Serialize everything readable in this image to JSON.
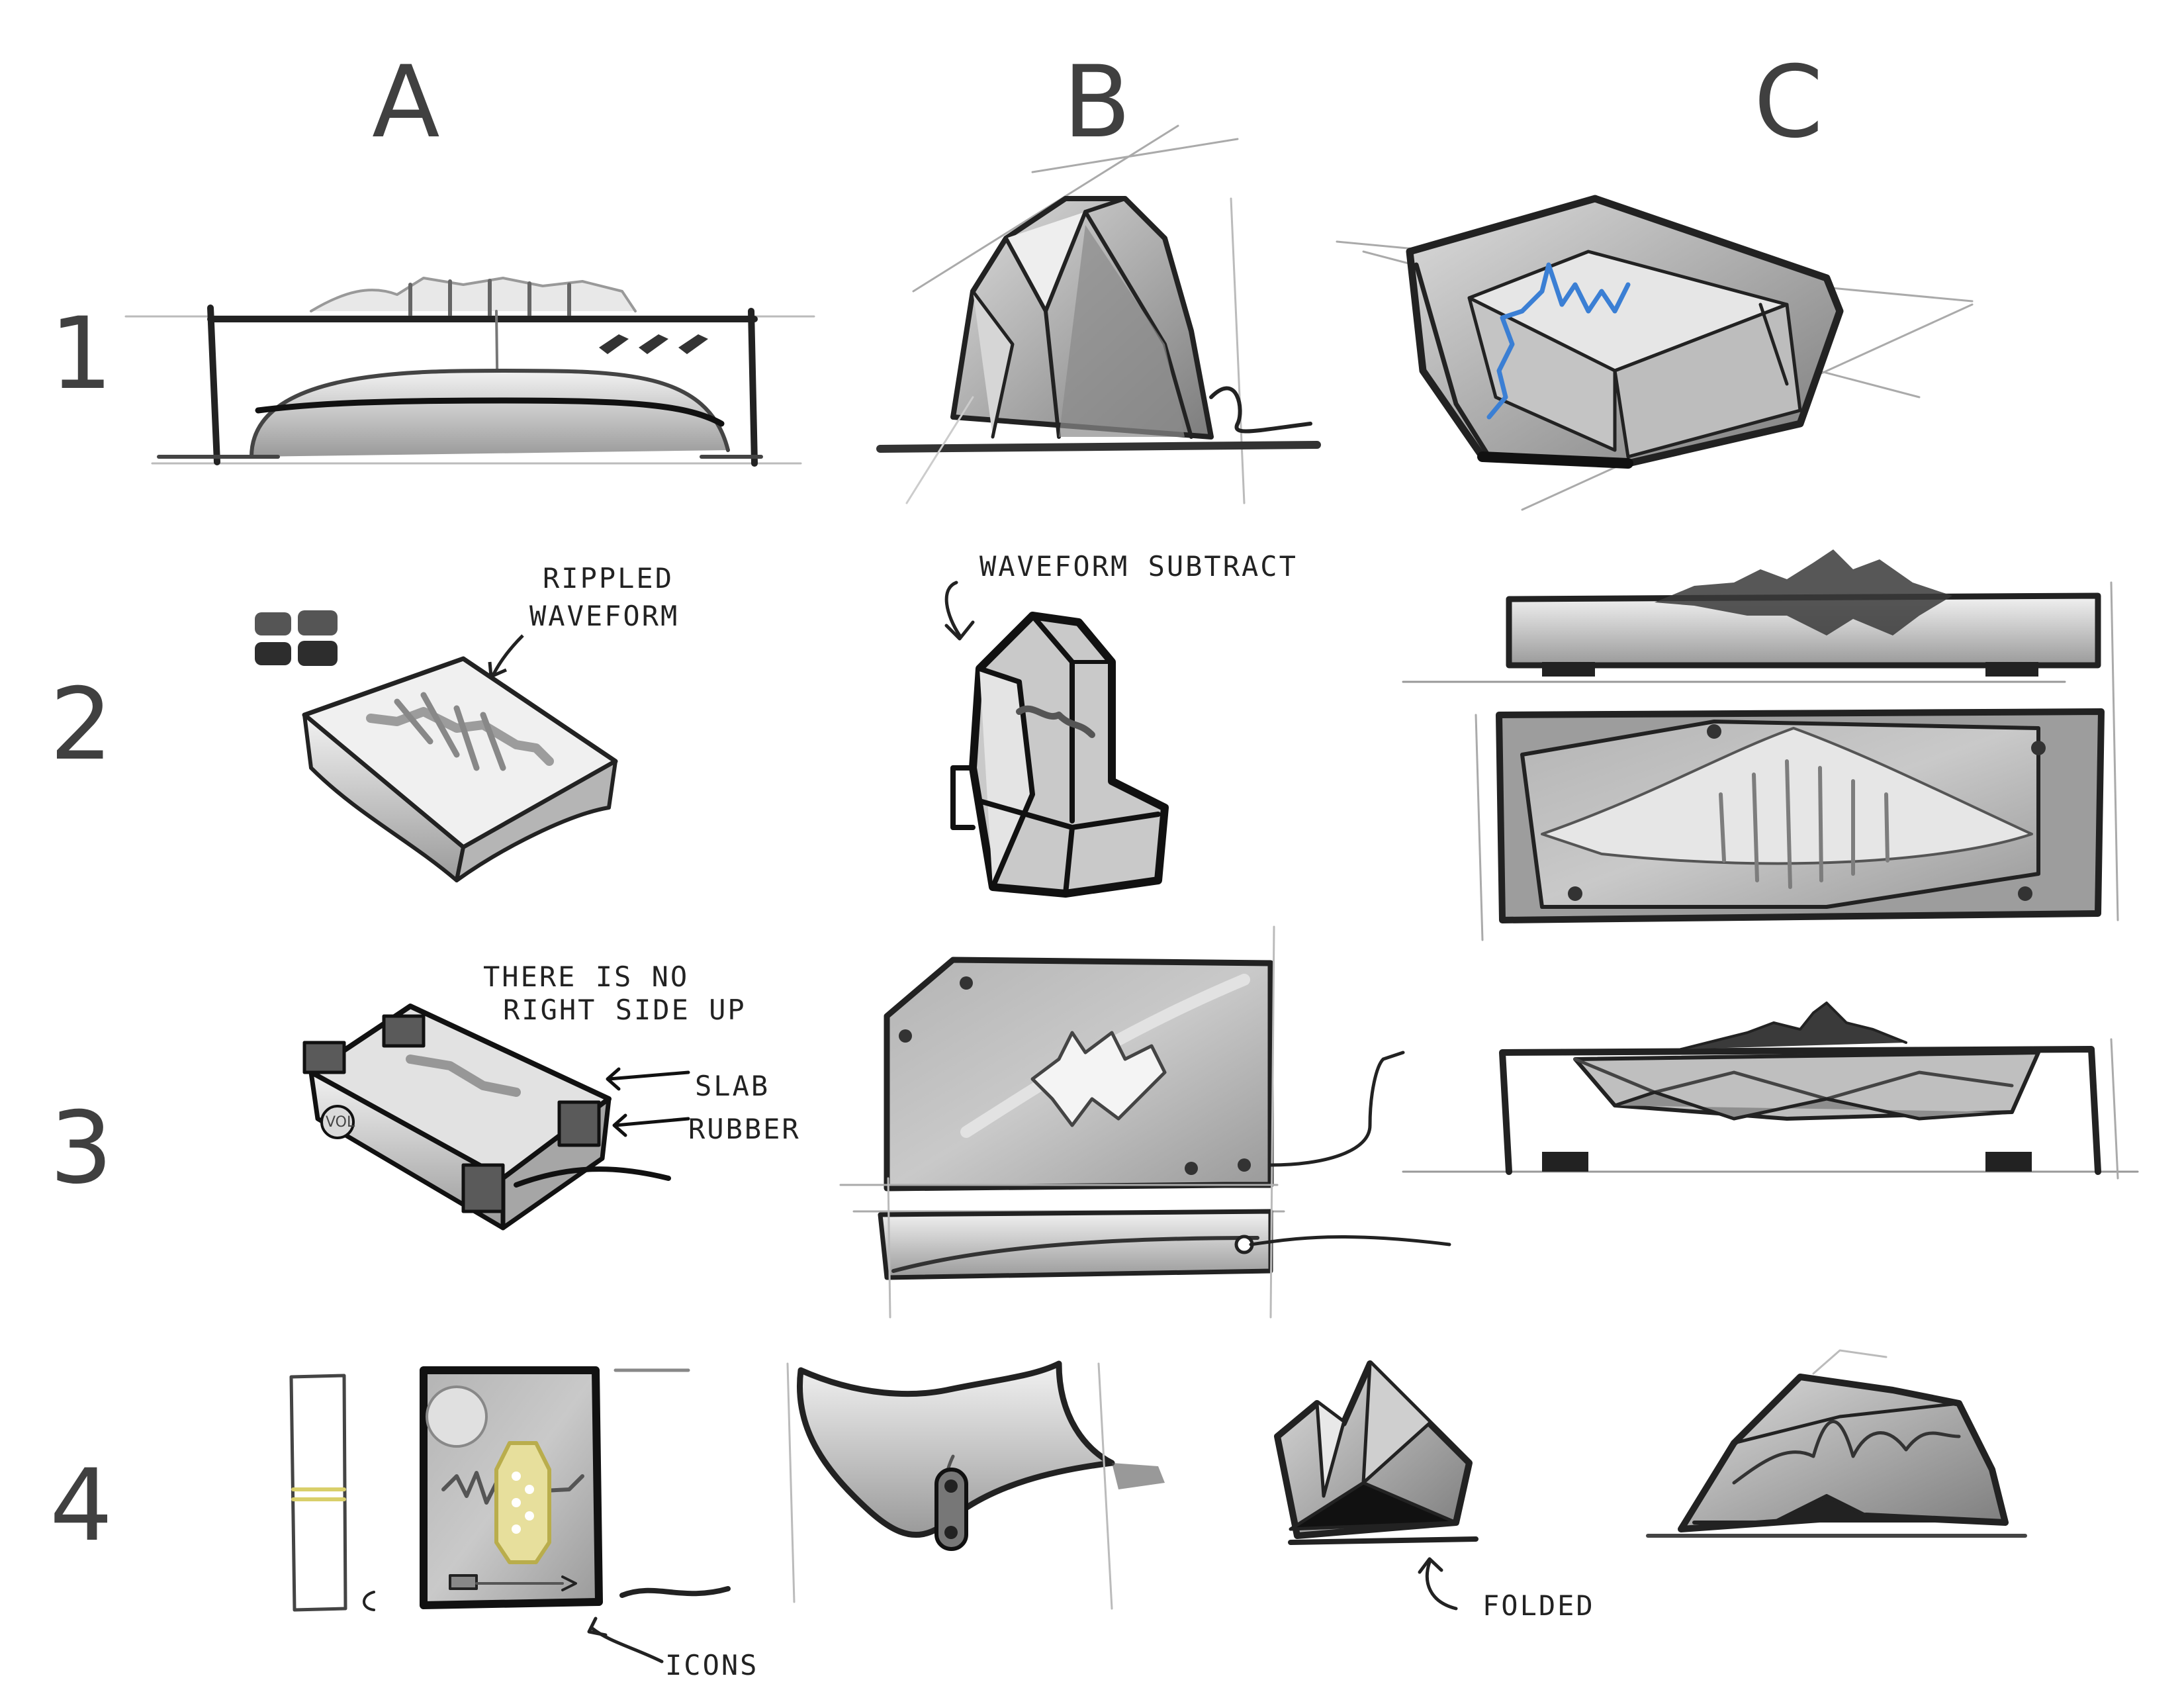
{
  "columns": [
    "A",
    "B",
    "C"
  ],
  "rows": [
    "1",
    "2",
    "3",
    "4"
  ],
  "annotations": {
    "rippled_1": "RIPPLED",
    "rippled_2": "WAVEFORM",
    "waveform_subtract": "WAVEFORM SUBTRACT",
    "no_right_side_1": "THERE IS NO",
    "no_right_side_2": "RIGHT SIDE UP",
    "slab": "SLAB",
    "rubber": "RUBBER",
    "folded": "FOLDED",
    "icons": "ICONS",
    "vol": "VOL"
  },
  "colors": {
    "ink": "#222222",
    "accent_blue": "#3b7fd4",
    "glow_yellow": "#e7df9c",
    "header": "#404040"
  }
}
